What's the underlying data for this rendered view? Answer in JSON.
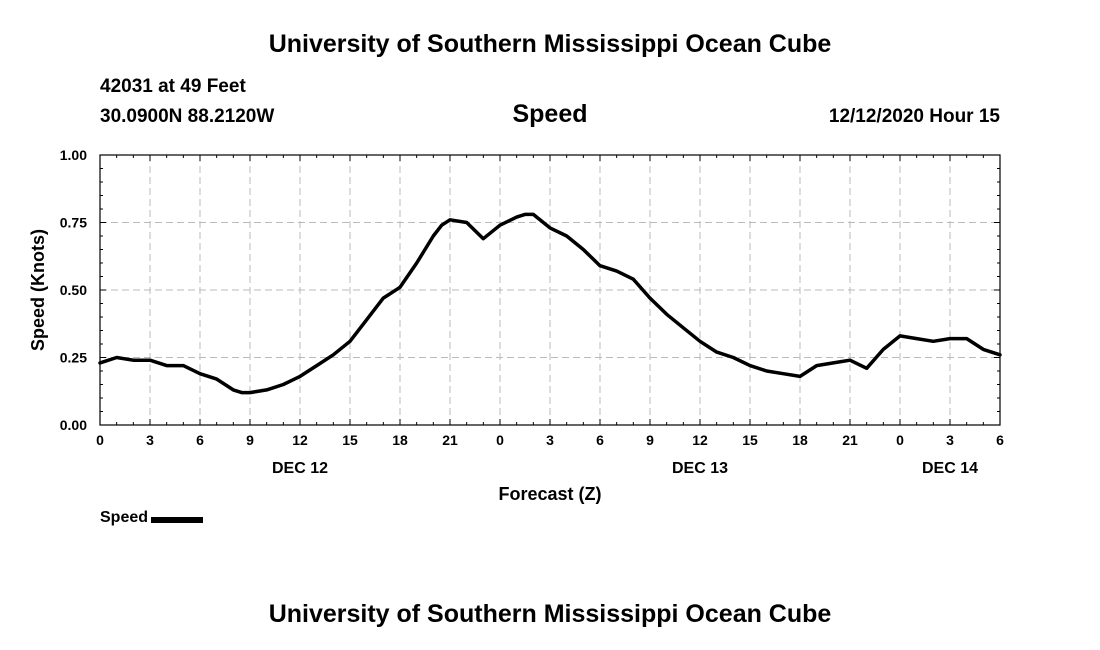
{
  "header": {
    "title": "University of Southern Mississippi Ocean Cube",
    "station": "42031 at 49 Feet",
    "coords": "30.0900N 88.2120W",
    "datetime": "12/12/2020 Hour 15"
  },
  "footer": {
    "title": "University of Southern Mississippi Ocean Cube"
  },
  "legend": {
    "label": "Speed",
    "color": "#000000"
  },
  "chart_data": {
    "type": "line",
    "title": "Speed",
    "xlabel": "Forecast (Z)",
    "ylabel": "Speed (Knots)",
    "xlim": [
      0,
      54
    ],
    "ylim": [
      0,
      1
    ],
    "grid": true,
    "x_ticks": [
      {
        "h": 0,
        "label": "0"
      },
      {
        "h": 3,
        "label": "3"
      },
      {
        "h": 6,
        "label": "6"
      },
      {
        "h": 9,
        "label": "9"
      },
      {
        "h": 12,
        "label": "12"
      },
      {
        "h": 15,
        "label": "15"
      },
      {
        "h": 18,
        "label": "18"
      },
      {
        "h": 21,
        "label": "21"
      },
      {
        "h": 24,
        "label": "0"
      },
      {
        "h": 27,
        "label": "3"
      },
      {
        "h": 30,
        "label": "6"
      },
      {
        "h": 33,
        "label": "9"
      },
      {
        "h": 36,
        "label": "12"
      },
      {
        "h": 39,
        "label": "15"
      },
      {
        "h": 42,
        "label": "18"
      },
      {
        "h": 45,
        "label": "21"
      },
      {
        "h": 48,
        "label": "0"
      },
      {
        "h": 51,
        "label": "3"
      },
      {
        "h": 54,
        "label": "6"
      }
    ],
    "day_labels": [
      {
        "h": 12,
        "label": "DEC 12"
      },
      {
        "h": 36,
        "label": "DEC 13"
      },
      {
        "h": 51,
        "label": "DEC 14"
      }
    ],
    "y_ticks": [
      {
        "v": 0.0,
        "label": "0.00"
      },
      {
        "v": 0.25,
        "label": "0.25"
      },
      {
        "v": 0.5,
        "label": "0.50"
      },
      {
        "v": 0.75,
        "label": "0.75"
      },
      {
        "v": 1.0,
        "label": "1.00"
      }
    ],
    "series": [
      {
        "name": "Speed",
        "color": "#000000",
        "x": [
          0,
          1,
          2,
          3,
          4,
          5,
          6,
          7,
          7.5,
          8,
          8.5,
          9,
          10,
          11,
          12,
          13,
          14,
          15,
          16,
          17,
          18,
          19,
          19.5,
          20,
          20.5,
          21,
          22,
          23,
          24,
          25,
          25.5,
          26,
          27,
          28,
          29,
          30,
          31,
          32,
          33,
          34,
          35,
          36,
          37,
          38,
          39,
          40,
          41,
          42,
          43,
          44,
          45,
          46,
          47,
          48,
          49,
          50,
          51,
          52,
          53,
          54
        ],
        "values": [
          0.23,
          0.25,
          0.24,
          0.24,
          0.22,
          0.22,
          0.19,
          0.17,
          0.15,
          0.13,
          0.12,
          0.12,
          0.13,
          0.15,
          0.18,
          0.22,
          0.26,
          0.31,
          0.39,
          0.47,
          0.51,
          0.6,
          0.65,
          0.7,
          0.74,
          0.76,
          0.75,
          0.69,
          0.74,
          0.77,
          0.78,
          0.78,
          0.73,
          0.7,
          0.65,
          0.59,
          0.57,
          0.54,
          0.47,
          0.41,
          0.36,
          0.31,
          0.27,
          0.25,
          0.22,
          0.2,
          0.19,
          0.18,
          0.22,
          0.23,
          0.24,
          0.21,
          0.28,
          0.33,
          0.32,
          0.31,
          0.32,
          0.32,
          0.28,
          0.26
        ]
      }
    ]
  }
}
